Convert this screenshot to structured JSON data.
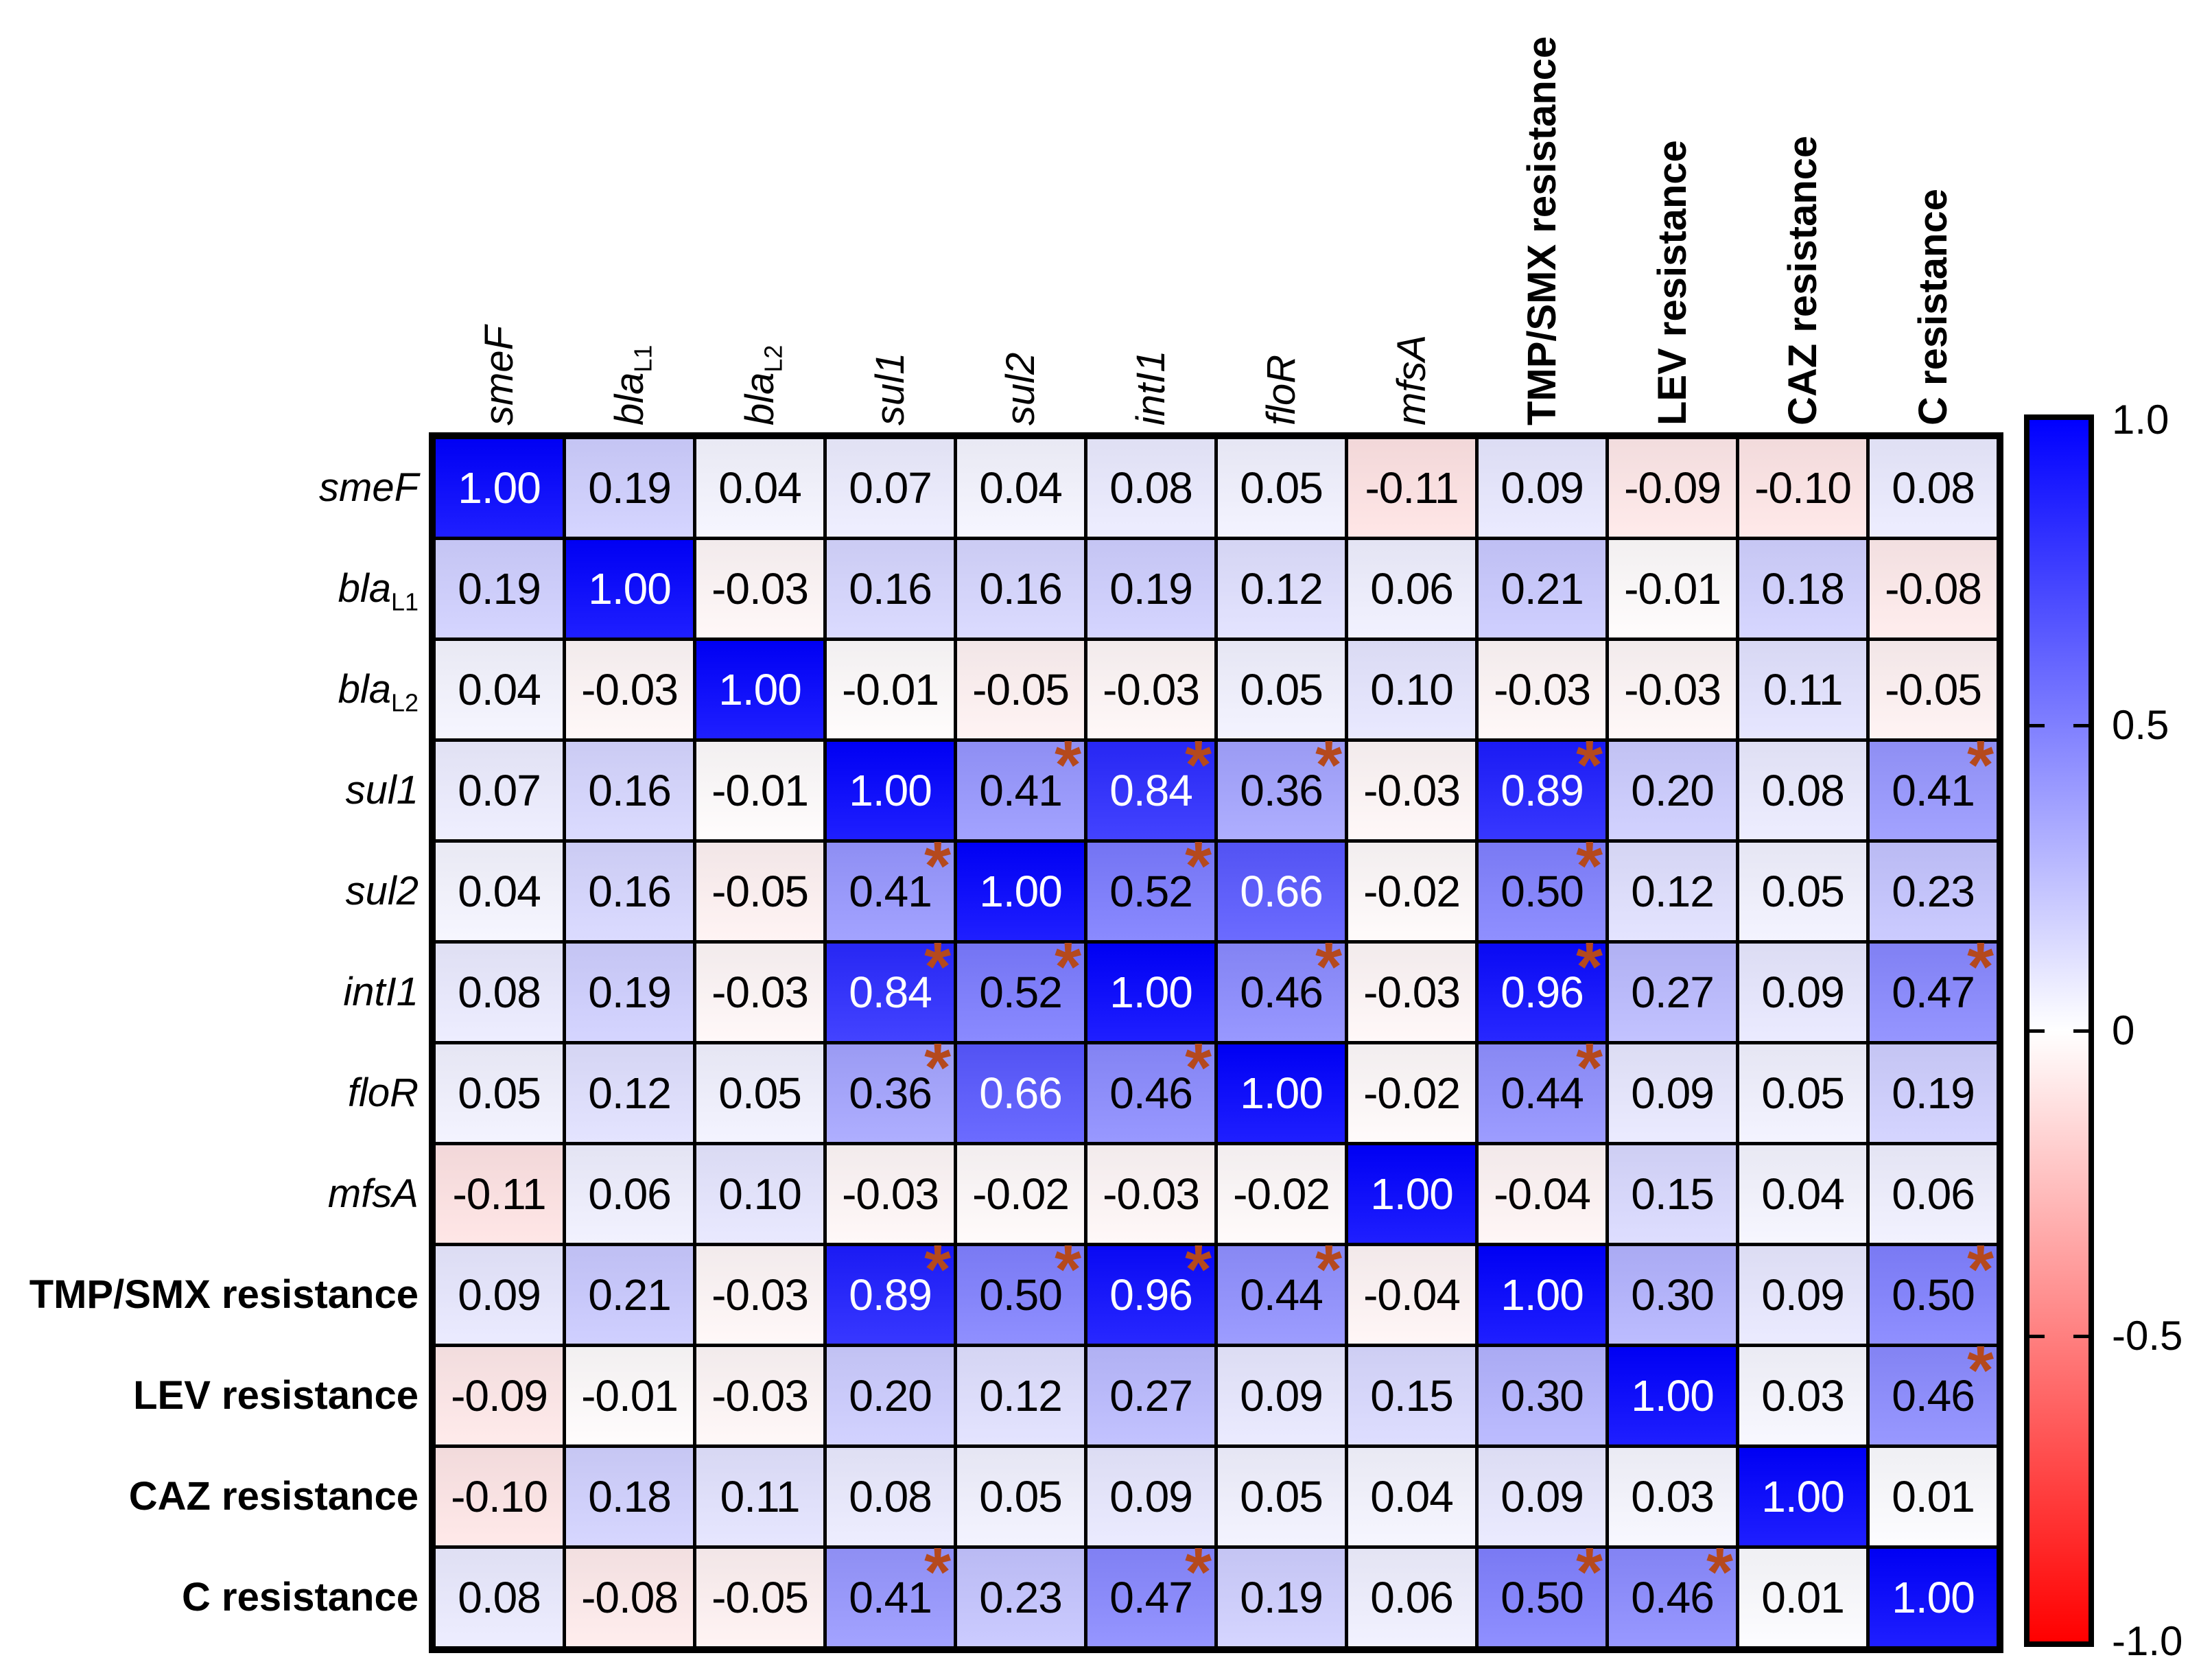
{
  "chart_data": {
    "type": "heatmap",
    "title": "",
    "xlabel": "",
    "ylabel": "",
    "legend_position": "right",
    "grid": true,
    "labels": [
      {
        "text": "smeF",
        "sub": "",
        "kind": "gene"
      },
      {
        "text": "bla",
        "sub": "L1",
        "kind": "gene"
      },
      {
        "text": "bla",
        "sub": "L2",
        "kind": "gene"
      },
      {
        "text": "sul1",
        "sub": "",
        "kind": "gene"
      },
      {
        "text": "sul2",
        "sub": "",
        "kind": "gene"
      },
      {
        "text": "intI1",
        "sub": "",
        "kind": "gene"
      },
      {
        "text": "floR",
        "sub": "",
        "kind": "gene"
      },
      {
        "text": "mfsA",
        "sub": "",
        "kind": "gene"
      },
      {
        "text": "TMP/SMX resistance",
        "sub": "",
        "kind": "phenotype"
      },
      {
        "text": "LEV resistance",
        "sub": "",
        "kind": "phenotype"
      },
      {
        "text": "CAZ resistance",
        "sub": "",
        "kind": "phenotype"
      },
      {
        "text": "C resistance",
        "sub": "",
        "kind": "phenotype"
      }
    ],
    "matrix": [
      [
        1.0,
        0.19,
        0.04,
        0.07,
        0.04,
        0.08,
        0.05,
        -0.11,
        0.09,
        -0.09,
        -0.1,
        0.08
      ],
      [
        0.19,
        1.0,
        -0.03,
        0.16,
        0.16,
        0.19,
        0.12,
        0.06,
        0.21,
        -0.01,
        0.18,
        -0.08
      ],
      [
        0.04,
        -0.03,
        1.0,
        -0.01,
        -0.05,
        -0.03,
        0.05,
        0.1,
        -0.03,
        -0.03,
        0.11,
        -0.05
      ],
      [
        0.07,
        0.16,
        -0.01,
        1.0,
        0.41,
        0.84,
        0.36,
        -0.03,
        0.89,
        0.2,
        0.08,
        0.41
      ],
      [
        0.04,
        0.16,
        -0.05,
        0.41,
        1.0,
        0.52,
        0.66,
        -0.02,
        0.5,
        0.12,
        0.05,
        0.23
      ],
      [
        0.08,
        0.19,
        -0.03,
        0.84,
        0.52,
        1.0,
        0.46,
        -0.03,
        0.96,
        0.27,
        0.09,
        0.47
      ],
      [
        0.05,
        0.12,
        0.05,
        0.36,
        0.66,
        0.46,
        1.0,
        -0.02,
        0.44,
        0.09,
        0.05,
        0.19
      ],
      [
        -0.11,
        0.06,
        0.1,
        -0.03,
        -0.02,
        -0.03,
        -0.02,
        1.0,
        -0.04,
        0.15,
        0.04,
        0.06
      ],
      [
        0.09,
        0.21,
        -0.03,
        0.89,
        0.5,
        0.96,
        0.44,
        -0.04,
        1.0,
        0.3,
        0.09,
        0.5
      ],
      [
        -0.09,
        -0.01,
        -0.03,
        0.2,
        0.12,
        0.27,
        0.09,
        0.15,
        0.3,
        1.0,
        0.03,
        0.46
      ],
      [
        -0.1,
        0.18,
        0.11,
        0.08,
        0.05,
        0.09,
        0.05,
        0.04,
        0.09,
        0.03,
        1.0,
        0.01
      ],
      [
        0.08,
        -0.08,
        -0.05,
        0.41,
        0.23,
        0.47,
        0.19,
        0.06,
        0.5,
        0.46,
        0.01,
        1.0
      ]
    ],
    "significant": [
      [
        3,
        4
      ],
      [
        3,
        5
      ],
      [
        3,
        6
      ],
      [
        3,
        8
      ],
      [
        3,
        11
      ],
      [
        4,
        3
      ],
      [
        4,
        5
      ],
      [
        4,
        8
      ],
      [
        5,
        3
      ],
      [
        5,
        4
      ],
      [
        5,
        6
      ],
      [
        5,
        8
      ],
      [
        5,
        11
      ],
      [
        6,
        3
      ],
      [
        6,
        5
      ],
      [
        6,
        8
      ],
      [
        8,
        3
      ],
      [
        8,
        4
      ],
      [
        8,
        5
      ],
      [
        8,
        6
      ],
      [
        8,
        11
      ],
      [
        9,
        11
      ],
      [
        11,
        3
      ],
      [
        11,
        5
      ],
      [
        11,
        8
      ],
      [
        11,
        9
      ]
    ],
    "significance_marker": "*",
    "marker_color": "#b5491d",
    "value_decimals": 2,
    "white_text_threshold": 0.6,
    "colorbar": {
      "range": [
        -1,
        1
      ],
      "max_color": "#0000ff",
      "zero_color": "#ffffff",
      "min_color": "#ff0000",
      "ticks": [
        "1.0",
        "0.5",
        "0",
        "-0.5",
        "-1.0"
      ]
    }
  }
}
